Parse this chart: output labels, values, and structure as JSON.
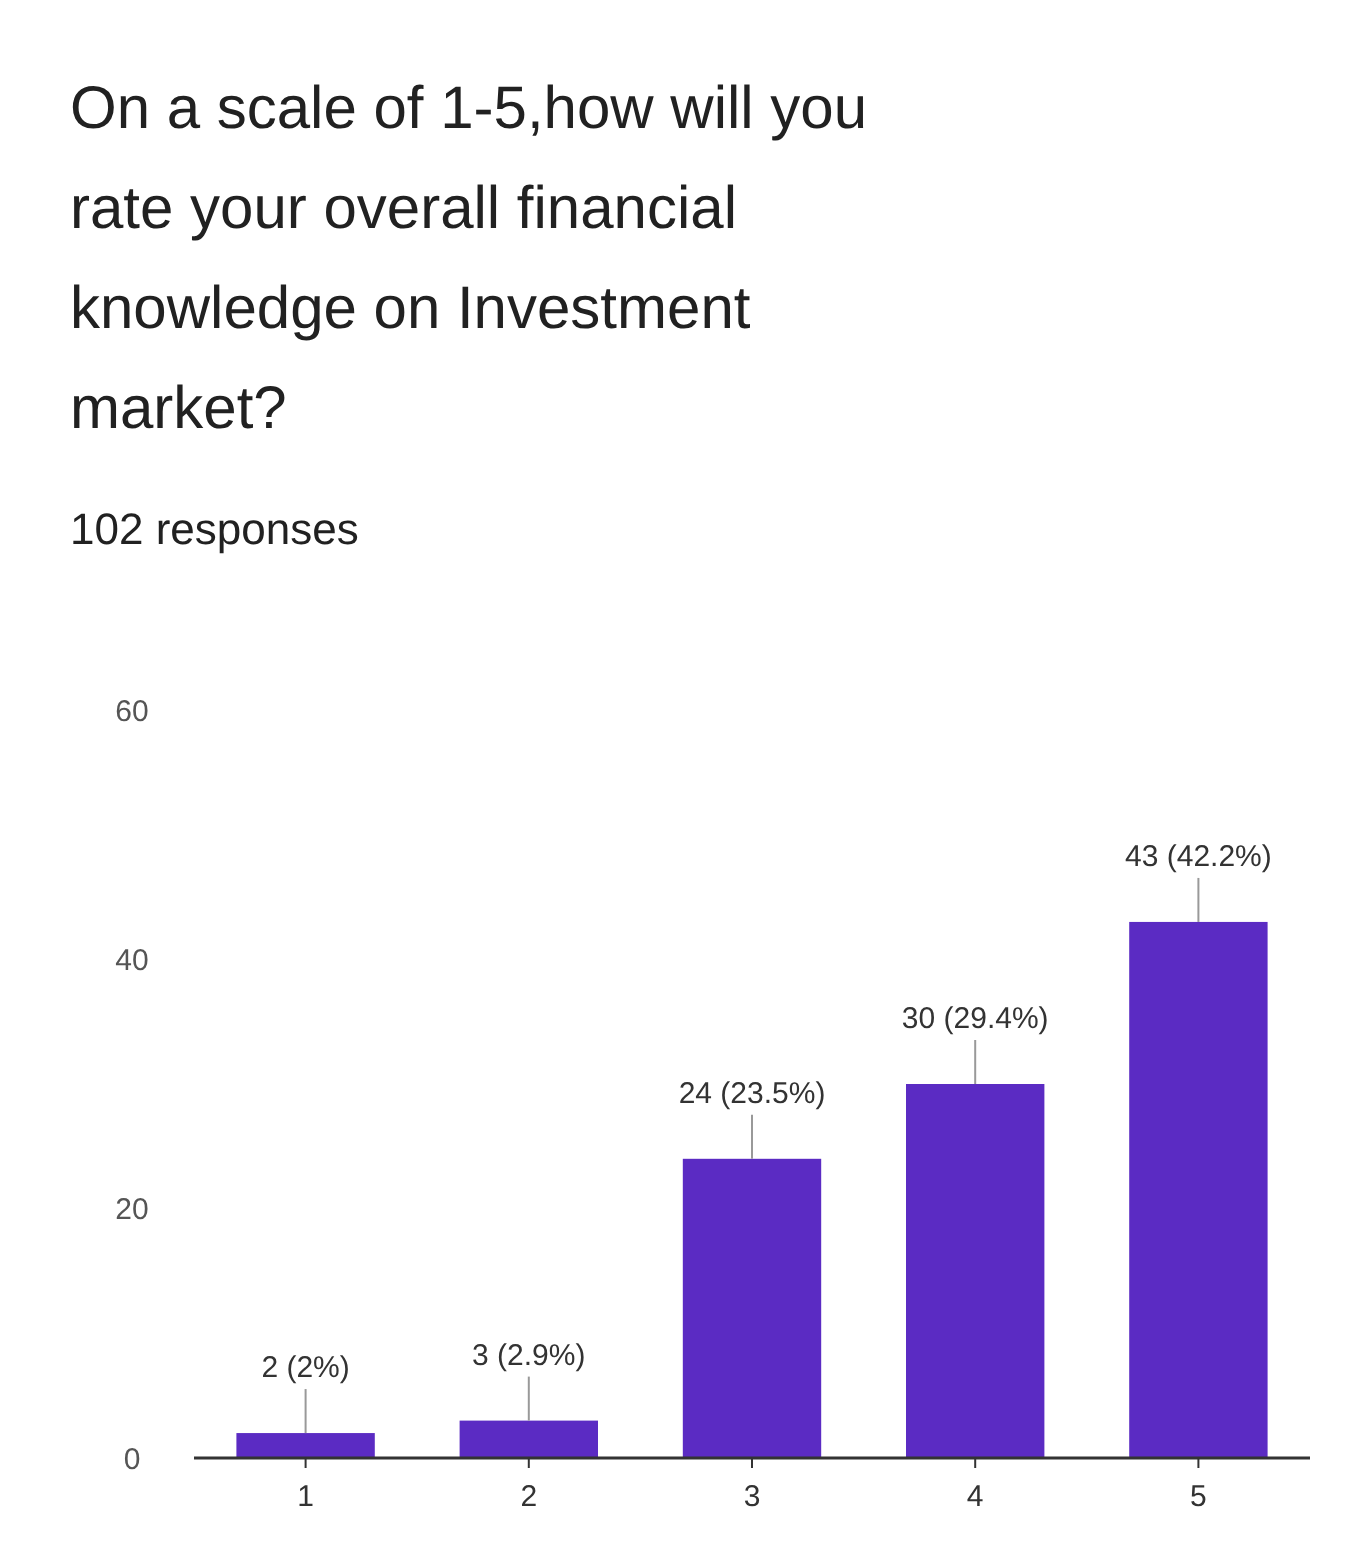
{
  "chart_data": {
    "type": "bar",
    "title": "On a scale of 1-5,how will you rate your overall financial knowledge on Investment market?",
    "subtitle": "102 responses",
    "categories": [
      "1",
      "2",
      "3",
      "4",
      "5"
    ],
    "values": [
      2,
      3,
      24,
      30,
      43
    ],
    "value_labels": [
      "2 (2%)",
      "3 (2.9%)",
      "24 (23.5%)",
      "30 (29.4%)",
      "43 (42.2%)"
    ],
    "color": "#5b2bc3",
    "ylim": [
      0,
      60
    ],
    "yticks": [
      0,
      20,
      40,
      60
    ],
    "grid": false
  }
}
